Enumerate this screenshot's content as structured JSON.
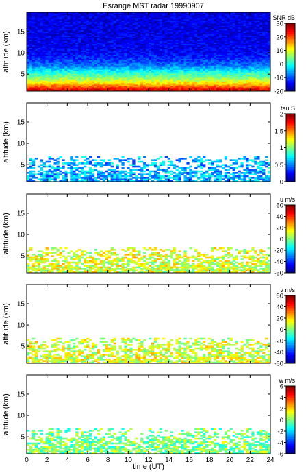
{
  "figure": {
    "title": "Esrange MST radar 19990907",
    "xlabel": "time (UT)"
  },
  "chart_data": [
    {
      "type": "heatmap",
      "quantity": "SNR",
      "colorbar_label": "SNR dB",
      "ylabel": "altitude (km)",
      "xlim": [
        0,
        24
      ],
      "ylim": [
        1,
        19.5
      ],
      "x_ticks": [
        0,
        2,
        4,
        6,
        8,
        10,
        12,
        14,
        16,
        18,
        20,
        22,
        24
      ],
      "y_ticks": [
        5,
        10,
        15
      ],
      "clim": [
        -20,
        30
      ],
      "cbar_ticks": [
        -20,
        -10,
        0,
        10,
        20,
        30
      ],
      "profile": [
        {
          "altitude": 1.5,
          "value": 24
        },
        {
          "altitude": 2.5,
          "value": 16
        },
        {
          "altitude": 3.5,
          "value": 9
        },
        {
          "altitude": 4.5,
          "value": 4
        },
        {
          "altitude": 5.5,
          "value": 0
        },
        {
          "altitude": 7.0,
          "value": -8
        },
        {
          "altitude": 10.0,
          "value": -14
        },
        {
          "altitude": 15.0,
          "value": -15
        }
      ]
    },
    {
      "type": "heatmap",
      "quantity": "tau",
      "colorbar_label": "tau S",
      "ylabel": "altitude (km)",
      "xlim": [
        0,
        24
      ],
      "ylim": [
        1,
        19.5
      ],
      "x_ticks": [
        0,
        2,
        4,
        6,
        8,
        10,
        12,
        14,
        16,
        18,
        20,
        22,
        24
      ],
      "y_ticks": [
        5,
        10,
        15
      ],
      "clim": [
        0,
        2
      ],
      "cbar_ticks": [
        0,
        0.5,
        1,
        1.5,
        2
      ],
      "data_top_altitude": 7,
      "typical_value": 0.6
    },
    {
      "type": "heatmap",
      "quantity": "u",
      "colorbar_label": "u m/s",
      "ylabel": "altitude (km)",
      "xlim": [
        0,
        24
      ],
      "ylim": [
        1,
        19.5
      ],
      "x_ticks": [
        0,
        2,
        4,
        6,
        8,
        10,
        12,
        14,
        16,
        18,
        20,
        22,
        24
      ],
      "y_ticks": [
        5,
        10,
        15
      ],
      "clim": [
        -60,
        60
      ],
      "cbar_ticks": [
        -60,
        -40,
        -20,
        0,
        20,
        40,
        60
      ],
      "data_top_altitude": 7,
      "typical_value": 10
    },
    {
      "type": "heatmap",
      "quantity": "v",
      "colorbar_label": "v m/s",
      "ylabel": "altitude (km)",
      "xlim": [
        0,
        24
      ],
      "ylim": [
        1,
        19.5
      ],
      "x_ticks": [
        0,
        2,
        4,
        6,
        8,
        10,
        12,
        14,
        16,
        18,
        20,
        22,
        24
      ],
      "y_ticks": [
        5,
        10,
        15
      ],
      "clim": [
        -60,
        60
      ],
      "cbar_ticks": [
        -60,
        -40,
        -20,
        0,
        20,
        40,
        60
      ],
      "data_top_altitude": 7,
      "typical_value": 10
    },
    {
      "type": "heatmap",
      "quantity": "w",
      "colorbar_label": "w m/s",
      "ylabel": "altitude (km)",
      "xlim": [
        0,
        24
      ],
      "ylim": [
        1,
        19.5
      ],
      "x_ticks": [
        0,
        2,
        4,
        6,
        8,
        10,
        12,
        14,
        16,
        18,
        20,
        22,
        24
      ],
      "y_ticks": [
        5,
        10,
        15
      ],
      "clim": [
        -6,
        6
      ],
      "cbar_ticks": [
        -6,
        -4,
        -2,
        0,
        2,
        4,
        6
      ],
      "data_top_altitude": 7,
      "typical_value": 0
    }
  ]
}
